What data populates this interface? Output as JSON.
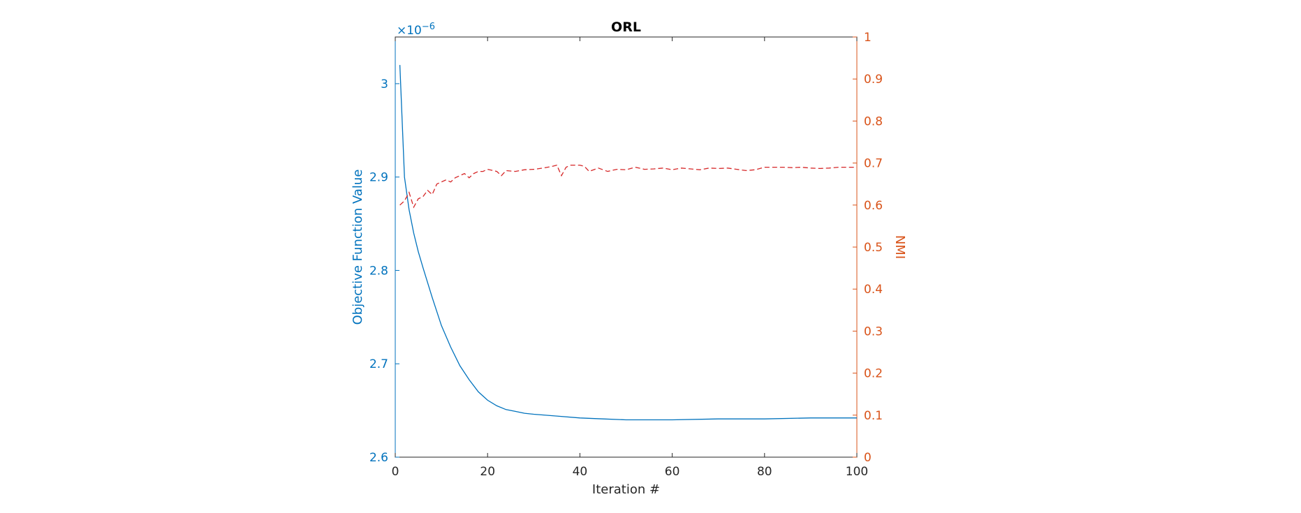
{
  "colors": {
    "left_axis": "#0072BD",
    "right_axis": "#D95319",
    "nmi_line": "#D62728",
    "axis_dark": "#262626"
  },
  "chart_data": {
    "type": "line",
    "title": "ORL",
    "xlabel": "Iteration #",
    "ylabel_left": "Objective Function Value",
    "ylabel_right": "NMI",
    "left_exponent_label": "×10",
    "left_exponent_power": "−6",
    "xlim": [
      0,
      100
    ],
    "ylim_left": [
      2.6,
      3.05
    ],
    "ylim_right": [
      0,
      1
    ],
    "x_ticks": [
      0,
      20,
      40,
      60,
      80,
      100
    ],
    "y_left_ticks": [
      2.6,
      2.7,
      2.8,
      2.9,
      3
    ],
    "y_left_tick_labels": [
      "2.6",
      "2.7",
      "2.8",
      "2.9",
      "3"
    ],
    "y_right_ticks": [
      0,
      0.1,
      0.2,
      0.3,
      0.4,
      0.5,
      0.6,
      0.7,
      0.8,
      0.9,
      1
    ],
    "y_right_tick_labels": [
      "0",
      "0.1",
      "0.2",
      "0.3",
      "0.4",
      "0.5",
      "0.6",
      "0.7",
      "0.8",
      "0.9",
      "1"
    ],
    "grid": false,
    "legend": "none",
    "series": [
      {
        "axis": "left",
        "style": "solid",
        "x": [
          1,
          2,
          3,
          4,
          5,
          6,
          7,
          8,
          9,
          10,
          12,
          14,
          16,
          18,
          20,
          22,
          24,
          26,
          28,
          30,
          35,
          40,
          45,
          50,
          60,
          70,
          80,
          90,
          100
        ],
        "y": [
          3.02,
          2.9,
          2.865,
          2.84,
          2.82,
          2.803,
          2.787,
          2.771,
          2.756,
          2.741,
          2.718,
          2.698,
          2.683,
          2.67,
          2.661,
          2.655,
          2.651,
          2.649,
          2.647,
          2.646,
          2.644,
          2.642,
          2.641,
          2.64,
          2.64,
          2.641,
          2.641,
          2.642,
          2.642
        ]
      },
      {
        "axis": "right",
        "style": "dashed",
        "x": [
          1,
          2,
          3,
          4,
          5,
          6,
          7,
          8,
          9,
          10,
          11,
          12,
          13,
          14,
          15,
          16,
          17,
          18,
          19,
          20,
          22,
          23,
          24,
          26,
          28,
          30,
          32,
          34,
          35,
          36,
          37,
          38,
          40,
          41,
          42,
          44,
          46,
          48,
          50,
          52,
          54,
          56,
          58,
          60,
          62,
          64,
          66,
          68,
          70,
          72,
          74,
          76,
          78,
          80,
          82,
          84,
          86,
          88,
          90,
          92,
          94,
          96,
          98,
          100
        ],
        "y": [
          0.6,
          0.61,
          0.63,
          0.595,
          0.615,
          0.62,
          0.635,
          0.625,
          0.65,
          0.655,
          0.66,
          0.655,
          0.665,
          0.67,
          0.675,
          0.665,
          0.675,
          0.68,
          0.68,
          0.685,
          0.68,
          0.67,
          0.682,
          0.68,
          0.684,
          0.685,
          0.688,
          0.692,
          0.695,
          0.67,
          0.69,
          0.695,
          0.695,
          0.692,
          0.68,
          0.688,
          0.68,
          0.685,
          0.684,
          0.69,
          0.685,
          0.686,
          0.688,
          0.684,
          0.688,
          0.686,
          0.684,
          0.688,
          0.687,
          0.688,
          0.685,
          0.682,
          0.684,
          0.69,
          0.69,
          0.69,
          0.689,
          0.69,
          0.688,
          0.687,
          0.688,
          0.69,
          0.69,
          0.69
        ]
      }
    ]
  }
}
